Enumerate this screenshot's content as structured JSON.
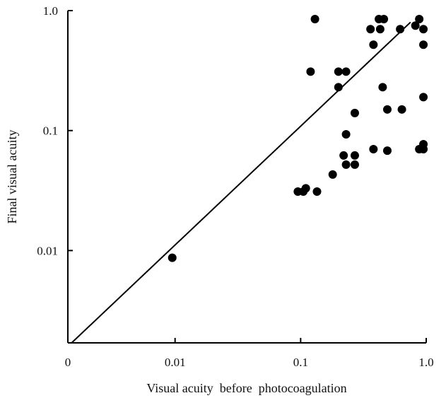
{
  "chart_data": {
    "type": "scatter",
    "title": "",
    "xlabel": "Visual acuity  before  photocoagulation",
    "ylabel": "Final visual acuity",
    "x_scale": "log",
    "y_scale": "log",
    "xlim": [
      0.0014,
      1.0
    ],
    "ylim": [
      0.0017,
      1.0
    ],
    "x_ticks": [
      {
        "value": 0.0014,
        "label": "0"
      },
      {
        "value": 0.01,
        "label": "0.01"
      },
      {
        "value": 0.1,
        "label": "0.1"
      },
      {
        "value": 1.0,
        "label": "1.0"
      }
    ],
    "y_ticks": [
      {
        "value": 0.01,
        "label": "0.01"
      },
      {
        "value": 0.1,
        "label": "0.1"
      },
      {
        "value": 1.0,
        "label": "1.0"
      }
    ],
    "grid": false,
    "legend": "none",
    "colors": {
      "marker": "#000000",
      "line": "#000000",
      "axis": "#000000"
    },
    "reference_line": {
      "type": "identity",
      "x": [
        0.0015,
        0.75
      ],
      "y": [
        0.0017,
        0.8
      ]
    },
    "points": [
      {
        "x": 0.0095,
        "y": 0.0087
      },
      {
        "x": 0.095,
        "y": 0.031
      },
      {
        "x": 0.105,
        "y": 0.031
      },
      {
        "x": 0.11,
        "y": 0.033
      },
      {
        "x": 0.135,
        "y": 0.031
      },
      {
        "x": 0.18,
        "y": 0.043
      },
      {
        "x": 0.22,
        "y": 0.062
      },
      {
        "x": 0.23,
        "y": 0.052
      },
      {
        "x": 0.23,
        "y": 0.093
      },
      {
        "x": 0.27,
        "y": 0.052
      },
      {
        "x": 0.27,
        "y": 0.062
      },
      {
        "x": 0.27,
        "y": 0.14
      },
      {
        "x": 0.12,
        "y": 0.31
      },
      {
        "x": 0.13,
        "y": 0.85
      },
      {
        "x": 0.2,
        "y": 0.23
      },
      {
        "x": 0.2,
        "y": 0.31
      },
      {
        "x": 0.23,
        "y": 0.31
      },
      {
        "x": 0.36,
        "y": 0.7
      },
      {
        "x": 0.38,
        "y": 0.52
      },
      {
        "x": 0.38,
        "y": 0.07
      },
      {
        "x": 0.42,
        "y": 0.85
      },
      {
        "x": 0.43,
        "y": 0.7
      },
      {
        "x": 0.45,
        "y": 0.23
      },
      {
        "x": 0.46,
        "y": 0.85
      },
      {
        "x": 0.49,
        "y": 0.15
      },
      {
        "x": 0.49,
        "y": 0.068
      },
      {
        "x": 0.62,
        "y": 0.7
      },
      {
        "x": 0.64,
        "y": 0.15
      },
      {
        "x": 0.82,
        "y": 0.75
      },
      {
        "x": 0.88,
        "y": 0.85
      },
      {
        "x": 0.88,
        "y": 0.07
      },
      {
        "x": 0.95,
        "y": 0.7
      },
      {
        "x": 0.95,
        "y": 0.52
      },
      {
        "x": 0.95,
        "y": 0.19
      },
      {
        "x": 0.95,
        "y": 0.077
      },
      {
        "x": 0.95,
        "y": 0.07
      }
    ]
  }
}
